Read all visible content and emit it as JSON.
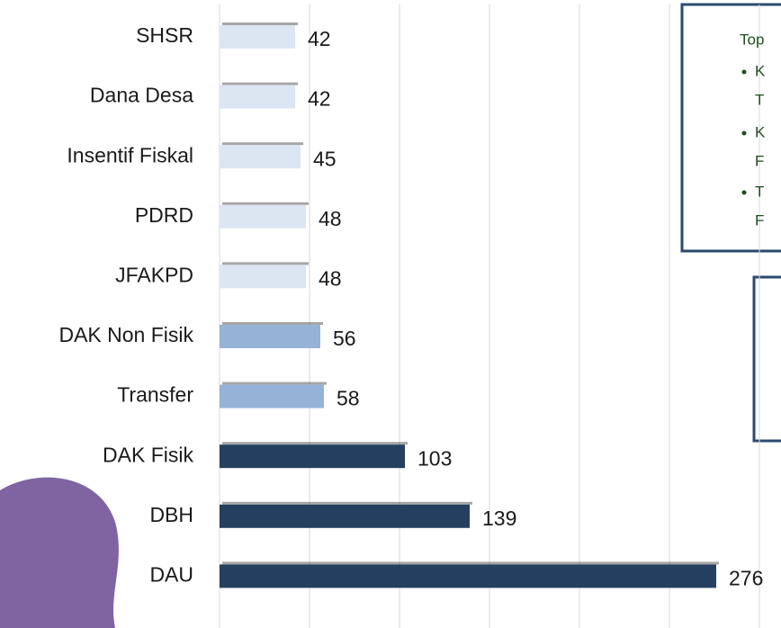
{
  "chart_data": {
    "type": "bar",
    "orientation": "horizontal",
    "categories": [
      "SHSR",
      "Dana Desa",
      "Insentif Fiskal",
      "PDRD",
      "JFAKPD",
      "DAK Non Fisik",
      "Transfer",
      "DAK Fisik",
      "DBH",
      "DAU"
    ],
    "values": [
      42,
      42,
      45,
      48,
      48,
      56,
      58,
      103,
      139,
      276
    ],
    "colors": [
      "#dce6f2",
      "#dce6f2",
      "#dce6f2",
      "#dce6f2",
      "#dce6f2",
      "#95b3d7",
      "#95b3d7",
      "#243f60",
      "#243f60",
      "#243f60"
    ],
    "xlim": [
      0,
      300
    ],
    "xticks": [
      0,
      50,
      100,
      150,
      200,
      250,
      300
    ],
    "grid": true,
    "annotations": [
      [
        "Top",
        "K",
        "T",
        "K",
        "F",
        "T",
        "F"
      ]
    ]
  }
}
